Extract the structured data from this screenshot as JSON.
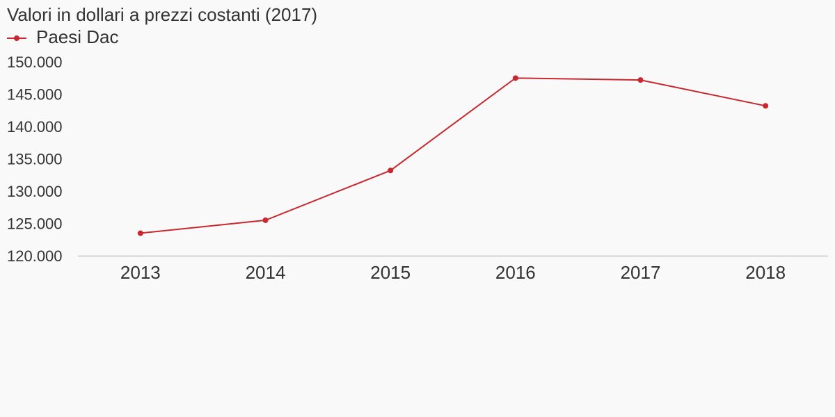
{
  "chart_data": {
    "type": "line",
    "title": "Valori in dollari a prezzi costanti (2017)",
    "categories": [
      "2013",
      "2014",
      "2015",
      "2016",
      "2017",
      "2018"
    ],
    "series": [
      {
        "name": "Paesi Dac",
        "color": "#c8282e",
        "values": [
          123600,
          125600,
          133300,
          147600,
          147300,
          143300
        ]
      }
    ],
    "ylim": [
      120000,
      150000
    ],
    "yticks": [
      {
        "value": 120000,
        "label": "120.000"
      },
      {
        "value": 125000,
        "label": "125.000"
      },
      {
        "value": 130000,
        "label": "130.000"
      },
      {
        "value": 135000,
        "label": "135.000"
      },
      {
        "value": 140000,
        "label": "140.000"
      },
      {
        "value": 145000,
        "label": "145.000"
      },
      {
        "value": 150000,
        "label": "150.000"
      }
    ],
    "grid": false,
    "legend": "top-left"
  }
}
